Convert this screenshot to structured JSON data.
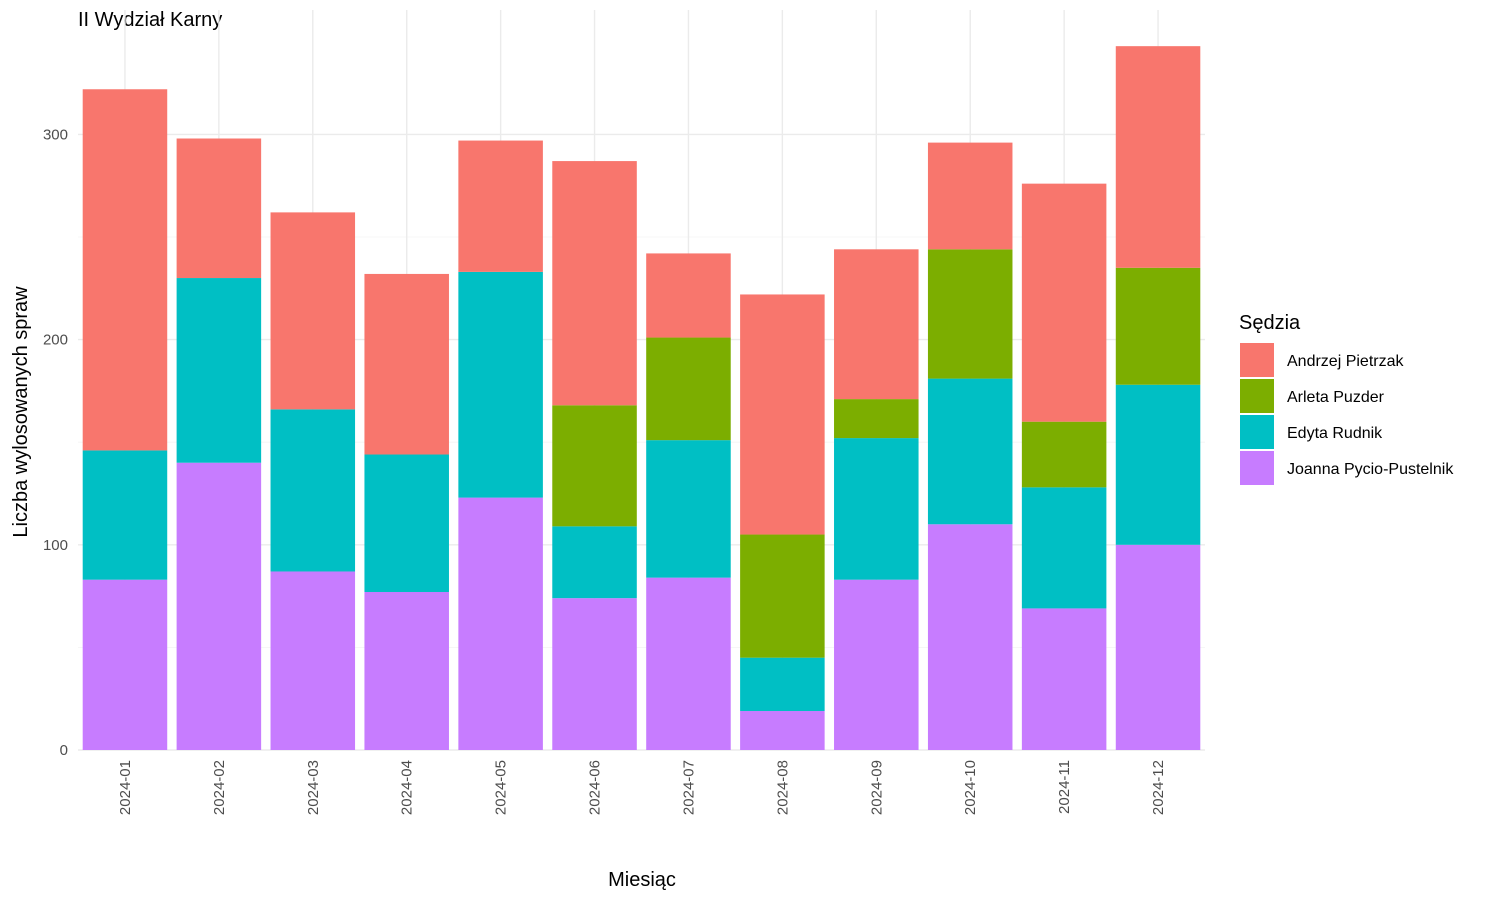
{
  "chart_data": {
    "type": "bar",
    "stacked": true,
    "title": "II Wydział Karny",
    "xlabel": "Miesiąc",
    "ylabel": "Liczba wylosowanych spraw",
    "ylim": [
      0,
      345
    ],
    "yticks": [
      0,
      100,
      200,
      300
    ],
    "grid": true,
    "legend": {
      "title": "Sędzia",
      "position": "right"
    },
    "categories": [
      "2024-01",
      "2024-02",
      "2024-03",
      "2024-04",
      "2024-05",
      "2024-06",
      "2024-07",
      "2024-08",
      "2024-09",
      "2024-10",
      "2024-11",
      "2024-12"
    ],
    "series": [
      {
        "name": "Joanna Pycio-Pustelnik",
        "color": "#C77CFF",
        "values": [
          83,
          140,
          87,
          77,
          123,
          74,
          84,
          19,
          83,
          110,
          69,
          100
        ]
      },
      {
        "name": "Edyta Rudnik",
        "color": "#00BFC4",
        "values": [
          63,
          90,
          79,
          67,
          110,
          35,
          67,
          26,
          69,
          71,
          59,
          78
        ]
      },
      {
        "name": "Arleta Puzder",
        "color": "#7CAE00",
        "values": [
          0,
          0,
          0,
          0,
          0,
          59,
          50,
          60,
          19,
          63,
          32,
          57
        ]
      },
      {
        "name": "Andrzej Pietrzak",
        "color": "#F8766D",
        "values": [
          176,
          68,
          96,
          88,
          64,
          119,
          41,
          117,
          73,
          52,
          116,
          108
        ]
      }
    ],
    "legend_order": [
      "Andrzej Pietrzak",
      "Arleta Puzder",
      "Edyta Rudnik",
      "Joanna Pycio-Pustelnik"
    ]
  }
}
